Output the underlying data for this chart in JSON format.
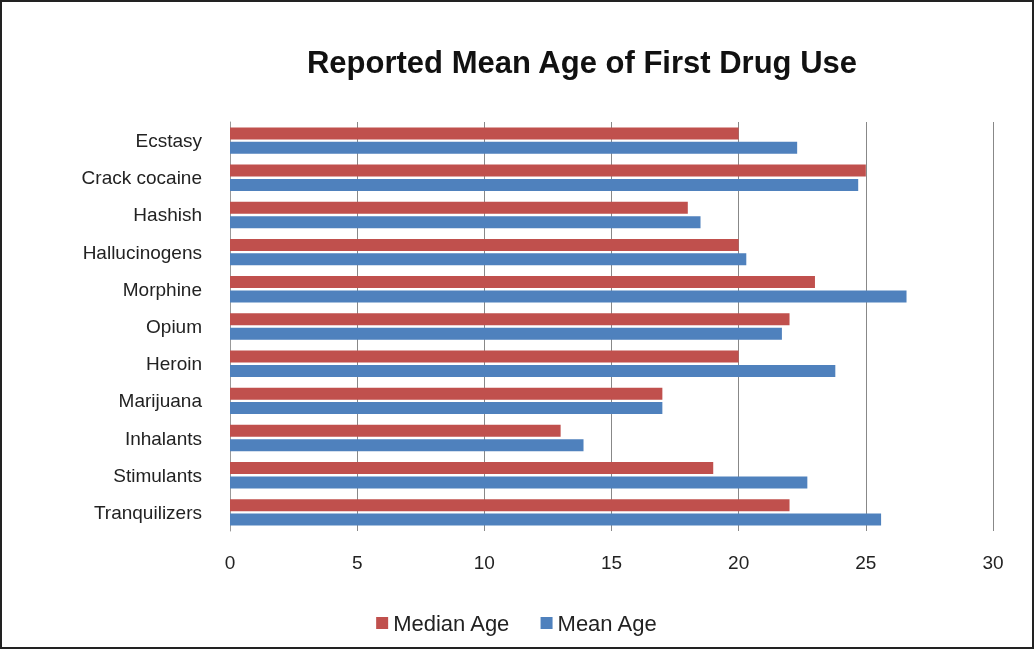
{
  "chart_data": {
    "type": "bar",
    "orientation": "horizontal",
    "title": "Reported Mean Age of First Drug Use",
    "categories": [
      "Ecstasy",
      "Crack cocaine",
      "Hashish",
      "Hallucinogens",
      "Morphine",
      "Opium",
      "Heroin",
      "Marijuana",
      "Inhalants",
      "Stimulants",
      "Tranquilizers"
    ],
    "series": [
      {
        "name": "Median Age",
        "color": "#c0504d",
        "values": [
          20,
          25,
          18,
          20,
          23,
          22,
          20,
          17,
          13,
          19,
          22
        ]
      },
      {
        "name": "Mean Age",
        "color": "#4f81bd",
        "values": [
          22.3,
          24.7,
          18.5,
          20.3,
          26.6,
          21.7,
          23.8,
          17,
          13.9,
          22.7,
          25.6
        ]
      }
    ],
    "xlim": [
      0,
      30
    ],
    "xticks": [
      0,
      5,
      10,
      15,
      20,
      25,
      30
    ],
    "grid": "x",
    "legend": "bottom"
  }
}
